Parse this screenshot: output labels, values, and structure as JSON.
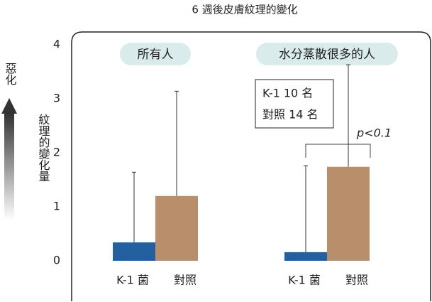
{
  "chart_data": {
    "type": "bar",
    "title": "6 週後皮膚紋理的變化",
    "y_label": "紋理的變化量",
    "side_label": "惡化",
    "categories": [
      "所有人",
      "水分蒸散很多的人"
    ],
    "series": [
      {
        "name": "K-1 菌",
        "color": "#2360a0",
        "values": [
          0.34,
          0.16
        ],
        "errors": [
          1.3,
          1.6
        ]
      },
      {
        "name": "對照",
        "color": "#b98f6b",
        "values": [
          1.2,
          1.74
        ],
        "errors": [
          1.94,
          1.89
        ]
      }
    ],
    "legend_box": [
      "K-1  10 名",
      "對照  14 名"
    ],
    "annotation": "p<0.1",
    "ylim": [
      0,
      4
    ],
    "yticks": [
      0,
      1,
      2,
      3,
      4
    ],
    "grid": false
  }
}
